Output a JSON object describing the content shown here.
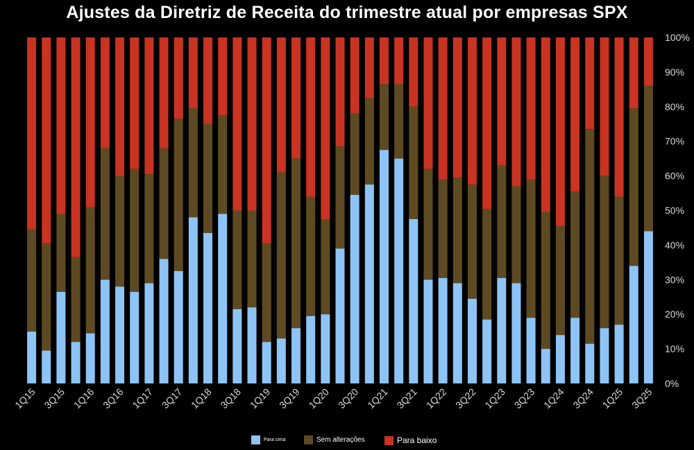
{
  "chart_data": {
    "type": "bar",
    "stacked": true,
    "normalized": true,
    "title": "Ajustes da Diretriz de Receita do trimestre atual por empresas SPX",
    "xlabel": "",
    "ylabel": "",
    "ylim": [
      0,
      100
    ],
    "y_unit": "%",
    "yticks": [
      "0%",
      "10%",
      "20%",
      "30%",
      "40%",
      "50%",
      "60%",
      "70%",
      "80%",
      "90%",
      "100%"
    ],
    "y_axis_position": "right",
    "grid": false,
    "legend_position": "bottom",
    "categories": [
      "1Q15",
      "2Q15",
      "3Q15",
      "4Q15",
      "1Q16",
      "2Q16",
      "3Q16",
      "4Q16",
      "1Q17",
      "2Q17",
      "3Q17",
      "4Q17",
      "1Q18",
      "2Q18",
      "3Q18",
      "4Q18",
      "1Q19",
      "2Q19",
      "3Q19",
      "4Q19",
      "1Q20",
      "2Q20",
      "3Q20",
      "4Q20",
      "1Q21",
      "2Q21",
      "3Q21",
      "4Q21",
      "1Q22",
      "2Q22",
      "3Q22",
      "4Q22",
      "1Q23",
      "2Q23",
      "3Q23",
      "4Q23",
      "1Q24",
      "2Q24",
      "3Q24",
      "4Q24",
      "1Q25",
      "2Q25",
      "3Q25"
    ],
    "x_tick_labels": [
      "1Q15",
      "3Q15",
      "1Q16",
      "3Q16",
      "1Q17",
      "3Q17",
      "1Q18",
      "3Q18",
      "1Q19",
      "3Q19",
      "1Q20",
      "3Q20",
      "1Q21",
      "3Q21",
      "1Q22",
      "3Q22",
      "1Q23",
      "3Q23",
      "1Q24",
      "3Q24",
      "1Q25",
      "3Q25"
    ],
    "series": [
      {
        "name": "Para cima",
        "color": "#8ec4f5",
        "values": [
          15,
          9.5,
          26.5,
          12,
          14.5,
          30,
          28,
          26.5,
          29,
          36,
          32.5,
          48,
          43.5,
          49,
          21.5,
          22,
          12,
          13,
          16,
          19.5,
          20,
          39,
          54.5,
          57.5,
          67.5,
          65,
          47.5,
          30,
          30.5,
          29,
          24.5,
          18.5,
          30.5,
          29,
          19,
          10,
          14,
          19,
          11.5,
          16,
          17,
          34,
          44
        ]
      },
      {
        "name": "Sem alterações",
        "color": "#5e4a22",
        "values": [
          29.5,
          31,
          22.5,
          24.5,
          36.5,
          38,
          32,
          35.5,
          31.5,
          32,
          44,
          31.5,
          31.5,
          28.5,
          28.5,
          28,
          28.5,
          48,
          49,
          34.5,
          27.5,
          29.5,
          23.5,
          25,
          19,
          21.5,
          32.5,
          32,
          28.5,
          30.5,
          33,
          32,
          32.5,
          28,
          40,
          39.5,
          31.5,
          36.5,
          62,
          44,
          37,
          45.5,
          42
        ]
      },
      {
        "name": "Para baixo",
        "color": "#c83322",
        "values": [
          55.5,
          59.5,
          51,
          63.5,
          49,
          32,
          40,
          38,
          39.5,
          32,
          23.5,
          20.5,
          25,
          22.5,
          50,
          50,
          59.5,
          39,
          35,
          46,
          52.5,
          31.5,
          22,
          17.5,
          13.5,
          13.5,
          20,
          38,
          41,
          40.5,
          42.5,
          49.5,
          37,
          43,
          41,
          50.5,
          54.5,
          44.5,
          26.5,
          40,
          46,
          20.5,
          14
        ]
      }
    ]
  }
}
